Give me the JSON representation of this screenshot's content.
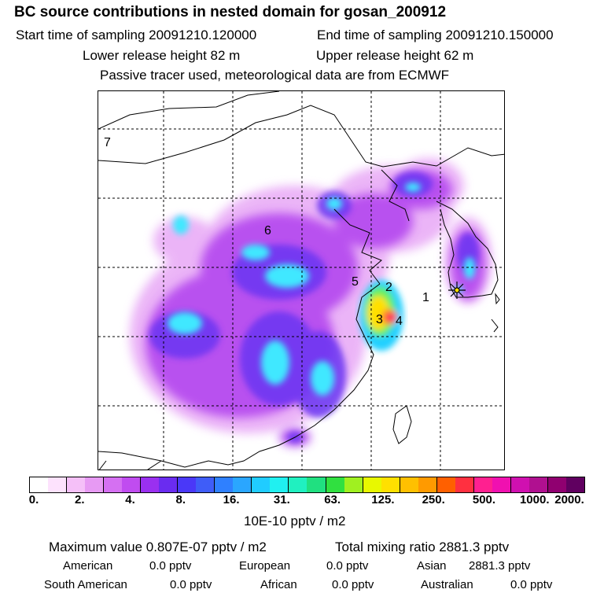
{
  "title": "BC  source contributions in nested domain for gosan_200912",
  "header": {
    "start_label": "Start time of sampling 20091210.120000",
    "end_label": "End time of sampling 20091210.150000",
    "lower_height": "Lower release height   82 m",
    "upper_height": "Upper release height   62 m",
    "tracer_note": "Passive tracer used, meteorological data are from ECMWF"
  },
  "map": {
    "region_labels": [
      "1",
      "2",
      "3",
      "4",
      "5",
      "6",
      "7"
    ],
    "receptor_marker": "star-icon",
    "colors": {
      "low": "#c060ff",
      "mid": "#7a2cf0",
      "cyan": "#40e8ff",
      "high": "#ffd400",
      "peak": "#ff2060"
    }
  },
  "legend": {
    "ticks": [
      "0.",
      "2.",
      "4.",
      "8.",
      "16.",
      "31.",
      "63.",
      "125.",
      "250.",
      "500.",
      "1000.",
      "2000."
    ],
    "colors": [
      "#ffffff",
      "#fde2fd",
      "#f5c0f8",
      "#e79af3",
      "#d570f2",
      "#c04cf0",
      "#9a30f0",
      "#6a2cf0",
      "#4a38f8",
      "#3f5df8",
      "#2f80ff",
      "#2aa6ff",
      "#20ccff",
      "#20f0f0",
      "#20f0c0",
      "#20e080",
      "#30e040",
      "#a0f020",
      "#e8f800",
      "#ffe000",
      "#ffc000",
      "#ff9a00",
      "#ff6000",
      "#ff3040",
      "#ff2090",
      "#f010b0",
      "#d010b0",
      "#b01090",
      "#900070",
      "#600060"
    ],
    "unit": "10E-10 pptv / m2"
  },
  "stats": {
    "max_value": "Maximum value  0.807E-07 pptv / m2",
    "total_mixing": "Total mixing ratio     2881.3 pptv",
    "american_label": "American",
    "american_value": "0.0 pptv",
    "european_label": "European",
    "european_value": "0.0 pptv",
    "asian_label": "Asian",
    "asian_value": "2881.3 pptv",
    "south_american_label": "South American",
    "south_american_value": "0.0 pptv",
    "african_label": "African",
    "african_value": "0.0 pptv",
    "australian_label": "Australian",
    "australian_value": "0.0 pptv"
  }
}
